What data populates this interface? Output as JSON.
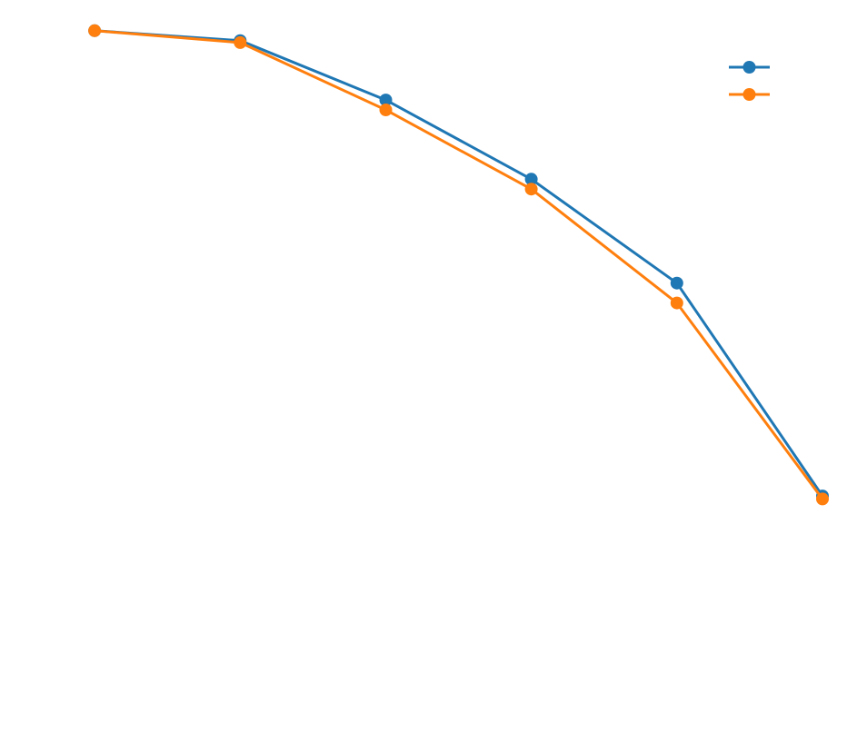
{
  "chart_data": {
    "type": "line",
    "title": "",
    "xlabel": "",
    "ylabel": "",
    "x": [
      1,
      2,
      3,
      4,
      5,
      6
    ],
    "xlim": [
      0.35,
      6.05
    ],
    "ylim": [
      0.3,
      1.0
    ],
    "grid": false,
    "axes_visible": false,
    "legend_position": "top-right",
    "marker": "circle",
    "series": [
      {
        "color": "#1f77b4",
        "values": [
          0.98,
          0.97,
          0.91,
          0.83,
          0.725,
          0.51
        ]
      },
      {
        "color": "#ff7f0e",
        "values": [
          0.98,
          0.968,
          0.9,
          0.82,
          0.705,
          0.507
        ]
      }
    ]
  }
}
